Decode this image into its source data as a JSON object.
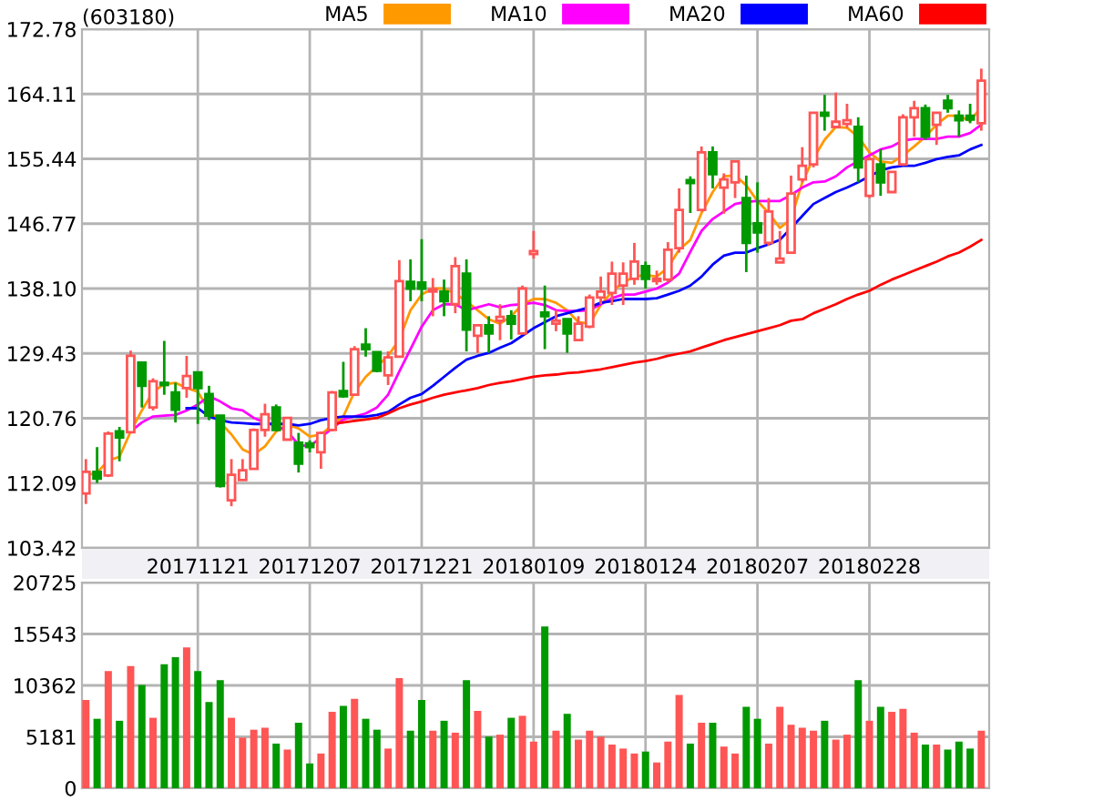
{
  "chart_data": [
    {
      "type": "candlestick",
      "title": "(603180)",
      "legend": "top right",
      "grid": true,
      "categories": [
        null,
        null,
        null,
        null,
        null,
        null,
        null,
        null,
        null,
        null,
        "20171121",
        null,
        null,
        null,
        null,
        null,
        null,
        null,
        null,
        null,
        "20171207",
        null,
        null,
        null,
        null,
        null,
        null,
        null,
        null,
        null,
        "20171221",
        null,
        null,
        null,
        null,
        null,
        null,
        null,
        null,
        null,
        "20180109",
        null,
        null,
        null,
        null,
        null,
        null,
        null,
        null,
        null,
        "20180124",
        null,
        null,
        null,
        null,
        null,
        null,
        null,
        null,
        null,
        "20180207",
        null,
        null,
        null,
        null,
        null,
        null,
        null,
        null,
        null,
        "20180228",
        null,
        null,
        null,
        null,
        null,
        null,
        null,
        null,
        null,
        null
      ],
      "ohlc": [
        [
          110.7,
          115.3,
          109.3,
          113.6
        ],
        [
          113.6,
          116.9,
          112.1,
          112.7
        ],
        [
          113.1,
          119.0,
          112.9,
          118.7
        ],
        [
          119.0,
          119.6,
          115.0,
          118.2
        ],
        [
          118.9,
          129.8,
          118.8,
          129.1
        ],
        [
          128.2,
          128.2,
          122.2,
          125.1
        ],
        [
          122.2,
          126.1,
          121.8,
          125.7
        ],
        [
          125.5,
          131.1,
          123.9,
          125.2
        ],
        [
          124.2,
          125.5,
          120.2,
          121.9
        ],
        [
          124.8,
          129.1,
          123.5,
          126.4
        ],
        [
          126.9,
          126.9,
          120.0,
          124.8
        ],
        [
          124.0,
          125.1,
          120.5,
          121.1
        ],
        [
          121.1,
          121.1,
          111.5,
          111.7
        ],
        [
          109.8,
          115.3,
          109.0,
          113.2
        ],
        [
          112.5,
          115.3,
          112.5,
          113.8
        ],
        [
          114.0,
          119.4,
          114.0,
          119.2
        ],
        [
          119.2,
          122.7,
          118.3,
          121.3
        ],
        [
          122.2,
          122.6,
          119.0,
          119.2
        ],
        [
          117.9,
          120.8,
          117.9,
          120.8
        ],
        [
          117.5,
          118.8,
          113.5,
          114.7
        ],
        [
          117.4,
          117.8,
          116.2,
          116.9
        ],
        [
          116.2,
          119.0,
          114.0,
          118.8
        ],
        [
          119.2,
          124.4,
          119.0,
          124.2
        ],
        [
          124.4,
          128.3,
          123.5,
          123.7
        ],
        [
          123.9,
          130.4,
          123.9,
          130.0
        ],
        [
          130.6,
          132.8,
          129.0,
          130.0
        ],
        [
          129.6,
          129.6,
          126.9,
          127.1
        ],
        [
          126.5,
          129.7,
          125.2,
          128.9
        ],
        [
          129.0,
          141.9,
          129.0,
          139.1
        ],
        [
          139.0,
          142.0,
          136.4,
          138.1
        ],
        [
          138.9,
          144.7,
          136.4,
          138.1
        ],
        [
          137.7,
          139.5,
          134.4,
          138.0
        ],
        [
          137.7,
          139.3,
          134.4,
          136.4
        ],
        [
          136.0,
          142.3,
          134.8,
          141.1
        ],
        [
          140.1,
          142.0,
          129.7,
          132.6
        ],
        [
          131.8,
          133.2,
          129.5,
          133.2
        ],
        [
          133.2,
          134.4,
          129.5,
          132.1
        ],
        [
          133.8,
          136.0,
          131.2,
          134.3
        ],
        [
          134.4,
          135.2,
          131.3,
          133.4
        ],
        [
          132.1,
          138.5,
          132.0,
          138.1
        ],
        [
          142.7,
          145.8,
          142.1,
          143.1
        ],
        [
          134.9,
          138.5,
          130.0,
          134.4
        ],
        [
          133.4,
          135.2,
          132.4,
          133.8
        ],
        [
          134.0,
          134.0,
          129.5,
          132.1
        ],
        [
          131.2,
          134.4,
          131.2,
          133.4
        ],
        [
          133.0,
          137.3,
          132.8,
          136.9
        ],
        [
          136.9,
          139.7,
          136.0,
          137.7
        ],
        [
          137.5,
          141.7,
          135.9,
          140.1
        ],
        [
          138.5,
          141.6,
          135.9,
          140.1
        ],
        [
          139.4,
          144.2,
          138.6,
          141.7
        ],
        [
          141.1,
          141.7,
          138.1,
          139.4
        ],
        [
          139.1,
          140.5,
          138.6,
          139.4
        ],
        [
          139.3,
          144.3,
          138.9,
          143.3
        ],
        [
          143.5,
          151.5,
          142.9,
          148.6
        ],
        [
          152.6,
          153.1,
          148.2,
          152.2
        ],
        [
          148.6,
          157.1,
          148.4,
          156.3
        ],
        [
          156.3,
          157.1,
          151.5,
          153.4
        ],
        [
          151.6,
          153.5,
          148.1,
          152.7
        ],
        [
          152.3,
          155.1,
          150.2,
          155.1
        ],
        [
          150.2,
          153.2,
          140.3,
          144.2
        ],
        [
          146.8,
          152.3,
          142.9,
          145.6
        ],
        [
          144.2,
          150.2,
          143.8,
          148.4
        ],
        [
          141.6,
          145.8,
          141.6,
          142.1
        ],
        [
          142.9,
          153.2,
          142.9,
          150.8
        ],
        [
          152.7,
          157.0,
          152.3,
          154.5
        ],
        [
          154.7,
          161.6,
          154.3,
          161.6
        ],
        [
          161.6,
          164.0,
          159.2,
          161.2
        ],
        [
          159.7,
          164.3,
          159.6,
          160.4
        ],
        [
          160.1,
          162.8,
          159.6,
          160.6
        ],
        [
          159.7,
          161.0,
          152.3,
          154.3
        ],
        [
          150.5,
          155.7,
          150.2,
          155.4
        ],
        [
          154.7,
          156.7,
          150.5,
          152.3
        ],
        [
          151.0,
          153.7,
          151.0,
          153.7
        ],
        [
          154.7,
          161.4,
          154.5,
          161.0
        ],
        [
          161.0,
          163.2,
          158.4,
          162.2
        ],
        [
          162.2,
          162.7,
          158.0,
          158.4
        ],
        [
          160.0,
          161.6,
          157.3,
          161.6
        ],
        [
          163.2,
          164.0,
          161.6,
          162.2
        ],
        [
          161.2,
          161.9,
          158.4,
          160.6
        ],
        [
          161.2,
          162.8,
          160.2,
          160.7
        ],
        [
          160.2,
          167.5,
          159.2,
          165.9
        ]
      ],
      "colors": [
        "#ff5555",
        "#009900",
        "#ff5555",
        "#009900",
        "#ff5555",
        "#009900",
        "#ff5555",
        "#009900",
        "#009900",
        "#ff5555",
        "#009900",
        "#009900",
        "#009900",
        "#ff5555",
        "#ff5555",
        "#ff5555",
        "#ff5555",
        "#009900",
        "#ff5555",
        "#009900",
        "#009900",
        "#ff5555",
        "#ff5555",
        "#009900",
        "#ff5555",
        "#009900",
        "#009900",
        "#ff5555",
        "#ff5555",
        "#009900",
        "#009900",
        "#ff5555",
        "#009900",
        "#ff5555",
        "#009900",
        "#ff5555",
        "#009900",
        "#ff5555",
        "#009900",
        "#ff5555",
        "#ff5555",
        "#009900",
        "#ff5555",
        "#009900",
        "#ff5555",
        "#ff5555",
        "#ff5555",
        "#ff5555",
        "#ff5555",
        "#ff5555",
        "#009900",
        "#ff5555",
        "#ff5555",
        "#ff5555",
        "#009900",
        "#ff5555",
        "#009900",
        "#ff5555",
        "#ff5555",
        "#009900",
        "#009900",
        "#ff5555",
        "#ff5555",
        "#ff5555",
        "#ff5555",
        "#ff5555",
        "#009900",
        "#ff5555",
        "#ff5555",
        "#009900",
        "#ff5555",
        "#009900",
        "#ff5555",
        "#ff5555",
        "#ff5555",
        "#009900",
        "#ff5555",
        "#009900",
        "#009900",
        "#009900",
        "#ff5555"
      ],
      "series": [
        {
          "name": "MA5",
          "type": "line",
          "color": "#ff9900",
          "values": [
            113.1,
            113.5,
            115.1,
            115.6,
            119.0,
            121.8,
            124.3,
            125.3,
            125.5,
            124.8,
            124.3,
            121.8,
            120.2,
            118.6,
            116.6,
            115.9,
            117.0,
            119.0,
            119.9,
            119.4,
            118.3,
            118.6,
            119.8,
            121.0,
            124.3,
            126.3,
            127.7,
            129.1,
            131.3,
            135.2,
            137.3,
            138.1,
            138.1,
            137.4,
            136.4,
            135.2,
            134.0,
            133.4,
            134.4,
            136.0,
            136.7,
            136.7,
            136.2,
            135.2,
            133.6,
            133.4,
            135.9,
            137.7,
            138.9,
            139.7,
            139.9,
            139.7,
            140.9,
            143.3,
            144.6,
            148.2,
            151.0,
            153.1,
            153.2,
            151.9,
            149.8,
            148.2,
            146.2,
            147.4,
            152.3,
            155.5,
            158.0,
            159.7,
            159.6,
            158.4,
            156.3,
            155.1,
            154.9,
            155.9,
            157.1,
            158.4,
            160.0,
            161.2,
            161.2,
            160.5,
            162.4
          ]
        },
        {
          "name": "MA10",
          "type": "line",
          "color": "#ff00ff",
          "values": [
            null,
            null,
            null,
            null,
            119.0,
            120.2,
            121.0,
            121.1,
            121.2,
            121.8,
            122.6,
            123.7,
            123.0,
            122.1,
            121.8,
            120.8,
            120.2,
            119.8,
            119.0,
            117.2,
            117.0,
            118.2,
            119.4,
            120.6,
            121.0,
            121.4,
            122.2,
            123.9,
            127.0,
            130.0,
            133.0,
            135.2,
            136.0,
            136.0,
            135.2,
            135.6,
            136.0,
            135.6,
            135.9,
            136.0,
            136.2,
            135.9,
            135.2,
            135.1,
            135.1,
            135.2,
            136.0,
            136.8,
            137.3,
            137.3,
            137.7,
            138.1,
            138.9,
            140.1,
            143.0,
            145.8,
            147.4,
            148.4,
            149.4,
            149.7,
            149.8,
            149.8,
            149.8,
            150.6,
            151.6,
            152.3,
            152.4,
            153.1,
            154.3,
            155.1,
            155.9,
            156.7,
            157.1,
            157.9,
            158.1,
            158.1,
            158.1,
            158.4,
            158.4,
            158.9,
            160.0
          ]
        },
        {
          "name": "MA20",
          "type": "line",
          "color": "#0000ff",
          "values": [
            null,
            null,
            null,
            null,
            null,
            null,
            null,
            null,
            null,
            122.1,
            122.1,
            121.0,
            120.5,
            120.2,
            120.1,
            120.0,
            120.0,
            120.0,
            120.0,
            119.8,
            120.0,
            120.5,
            120.8,
            121.0,
            121.0,
            121.0,
            121.2,
            121.6,
            122.6,
            123.5,
            124.0,
            125.1,
            126.3,
            127.5,
            128.6,
            129.1,
            129.5,
            130.2,
            130.8,
            131.8,
            132.8,
            133.6,
            134.4,
            134.8,
            135.2,
            135.6,
            136.2,
            136.4,
            136.7,
            136.7,
            136.7,
            136.8,
            137.3,
            137.8,
            138.5,
            139.7,
            141.3,
            142.5,
            142.9,
            142.9,
            143.5,
            144.0,
            144.6,
            146.2,
            147.8,
            149.4,
            150.2,
            151.0,
            151.6,
            152.3,
            153.1,
            153.9,
            154.3,
            154.5,
            154.5,
            154.9,
            155.4,
            155.7,
            155.9,
            156.7,
            157.3
          ]
        },
        {
          "name": "MA60",
          "type": "line",
          "color": "#ff0000",
          "values": [
            null,
            null,
            null,
            null,
            null,
            null,
            null,
            null,
            null,
            null,
            null,
            null,
            null,
            null,
            null,
            null,
            null,
            null,
            null,
            null,
            null,
            null,
            120.0,
            120.2,
            120.4,
            120.6,
            120.8,
            121.4,
            122.1,
            122.6,
            123.0,
            123.5,
            123.9,
            124.2,
            124.5,
            124.8,
            125.2,
            125.5,
            125.7,
            126.0,
            126.3,
            126.5,
            126.6,
            126.8,
            126.9,
            127.1,
            127.3,
            127.6,
            127.9,
            128.2,
            128.4,
            128.7,
            129.1,
            129.4,
            129.7,
            130.2,
            130.7,
            131.2,
            131.6,
            132.0,
            132.4,
            132.8,
            133.2,
            133.8,
            134.0,
            134.8,
            135.4,
            136.0,
            136.7,
            137.3,
            137.8,
            138.6,
            139.3,
            139.9,
            140.5,
            141.1,
            141.7,
            142.4,
            142.9,
            143.7,
            144.6
          ]
        }
      ],
      "ylim": [
        103.42,
        172.78
      ],
      "yticks": [
        103.42,
        112.09,
        120.76,
        129.43,
        {
          "value": 138.1,
          "label": "138.10"
        },
        146.77,
        155.44,
        164.11,
        172.78
      ]
    },
    {
      "type": "bar",
      "grid": true,
      "tick_labels": "y",
      "categories": [
        null,
        null,
        null,
        null,
        null,
        null,
        null,
        null,
        null,
        null,
        "20171121",
        null,
        null,
        null,
        null,
        null,
        null,
        null,
        null,
        null,
        "20171207",
        null,
        null,
        null,
        null,
        null,
        null,
        null,
        null,
        null,
        "20171221",
        null,
        null,
        null,
        null,
        null,
        null,
        null,
        null,
        null,
        "20180109",
        null,
        null,
        null,
        null,
        null,
        null,
        null,
        null,
        null,
        "20180124",
        null,
        null,
        null,
        null,
        null,
        null,
        null,
        null,
        null,
        "20180207",
        null,
        null,
        null,
        null,
        null,
        null,
        null,
        null,
        null,
        "20180228",
        null,
        null,
        null,
        null,
        null,
        null,
        null,
        null,
        null,
        null
      ],
      "values": [
        8900,
        7000,
        11800,
        6800,
        12300,
        10400,
        7100,
        12500,
        13200,
        14200,
        11800,
        8700,
        10900,
        7100,
        5100,
        5900,
        6100,
        4500,
        3900,
        6600,
        2500,
        3500,
        7700,
        8300,
        9000,
        7000,
        5900,
        4000,
        11100,
        5800,
        8900,
        5800,
        6800,
        5600,
        10900,
        7800,
        5200,
        5400,
        7100,
        7300,
        4700,
        16300,
        5800,
        7500,
        4900,
        5800,
        5200,
        4400,
        4000,
        3500,
        3700,
        2600,
        4700,
        9400,
        4500,
        6600,
        6600,
        4200,
        3500,
        8200,
        7000,
        4500,
        8200,
        6400,
        6100,
        5800,
        6800,
        4900,
        5400,
        10900,
        6800,
        8200,
        7700,
        8000,
        5600,
        4400,
        4400,
        3900,
        4700,
        4000,
        5800
      ],
      "colors": [
        "#ff5555",
        "#009900",
        "#ff5555",
        "#009900",
        "#ff5555",
        "#009900",
        "#ff5555",
        "#009900",
        "#009900",
        "#ff5555",
        "#009900",
        "#009900",
        "#009900",
        "#ff5555",
        "#ff5555",
        "#ff5555",
        "#ff5555",
        "#009900",
        "#ff5555",
        "#009900",
        "#009900",
        "#ff5555",
        "#ff5555",
        "#009900",
        "#ff5555",
        "#009900",
        "#009900",
        "#ff5555",
        "#ff5555",
        "#009900",
        "#009900",
        "#ff5555",
        "#009900",
        "#ff5555",
        "#009900",
        "#ff5555",
        "#009900",
        "#ff5555",
        "#009900",
        "#ff5555",
        "#ff5555",
        "#009900",
        "#ff5555",
        "#009900",
        "#ff5555",
        "#ff5555",
        "#ff5555",
        "#ff5555",
        "#ff5555",
        "#ff5555",
        "#009900",
        "#ff5555",
        "#ff5555",
        "#ff5555",
        "#009900",
        "#ff5555",
        "#009900",
        "#ff5555",
        "#ff5555",
        "#009900",
        "#009900",
        "#ff5555",
        "#ff5555",
        "#ff5555",
        "#ff5555",
        "#ff5555",
        "#009900",
        "#ff5555",
        "#ff5555",
        "#009900",
        "#ff5555",
        "#009900",
        "#ff5555",
        "#ff5555",
        "#ff5555",
        "#009900",
        "#ff5555",
        "#009900",
        "#009900",
        "#009900",
        "#ff5555"
      ],
      "ylim": [
        0,
        20725
      ],
      "yticks": [
        0,
        5181,
        10362,
        15543,
        20725
      ]
    }
  ]
}
